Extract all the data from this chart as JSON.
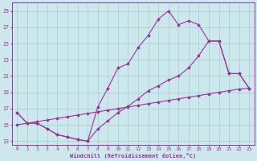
{
  "line1_x": [
    0,
    1,
    2,
    3,
    4,
    5,
    6,
    7,
    8,
    9,
    10,
    11,
    12,
    13,
    14,
    15,
    16,
    17,
    18,
    19,
    20,
    21,
    22,
    23
  ],
  "line1_y": [
    16.5,
    15.2,
    15.2,
    14.5,
    13.8,
    13.5,
    13.2,
    13.0,
    17.2,
    19.5,
    22.0,
    22.5,
    24.5,
    26.0,
    28.0,
    29.0,
    27.3,
    27.8,
    27.3,
    25.3,
    25.3,
    21.3,
    21.3,
    19.5
  ],
  "line2_x": [
    0,
    1,
    2,
    3,
    4,
    5,
    6,
    7,
    8,
    9,
    10,
    11,
    12,
    13,
    14,
    15,
    16,
    17,
    18,
    19,
    20,
    21,
    22,
    23
  ],
  "line2_y": [
    16.5,
    15.2,
    15.2,
    14.5,
    13.8,
    13.5,
    13.2,
    13.0,
    14.5,
    15.5,
    16.5,
    17.3,
    18.2,
    19.2,
    19.8,
    20.5,
    21.0,
    22.0,
    23.5,
    25.3,
    25.3,
    21.3,
    21.3,
    19.5
  ],
  "line3_x": [
    0,
    1,
    2,
    3,
    4,
    5,
    6,
    7,
    8,
    9,
    10,
    11,
    12,
    13,
    14,
    15,
    16,
    17,
    18,
    19,
    20,
    21,
    22,
    23
  ],
  "line3_y": [
    15.0,
    15.2,
    15.4,
    15.6,
    15.8,
    16.0,
    16.2,
    16.4,
    16.6,
    16.8,
    17.0,
    17.2,
    17.4,
    17.6,
    17.8,
    18.0,
    18.2,
    18.4,
    18.6,
    18.8,
    19.0,
    19.2,
    19.4,
    19.5
  ],
  "color": "#993399",
  "bg_color": "#cce8ec",
  "grid_color": "#aaccd4",
  "xlabel": "Windchill (Refroidissement éolien,°C)",
  "xlim": [
    -0.5,
    23.5
  ],
  "ylim": [
    12.5,
    30.0
  ],
  "yticks": [
    13,
    15,
    17,
    19,
    21,
    23,
    25,
    27,
    29
  ],
  "xticks": [
    0,
    1,
    2,
    3,
    4,
    5,
    6,
    7,
    8,
    9,
    10,
    11,
    12,
    13,
    14,
    15,
    16,
    17,
    18,
    19,
    20,
    21,
    22,
    23
  ]
}
